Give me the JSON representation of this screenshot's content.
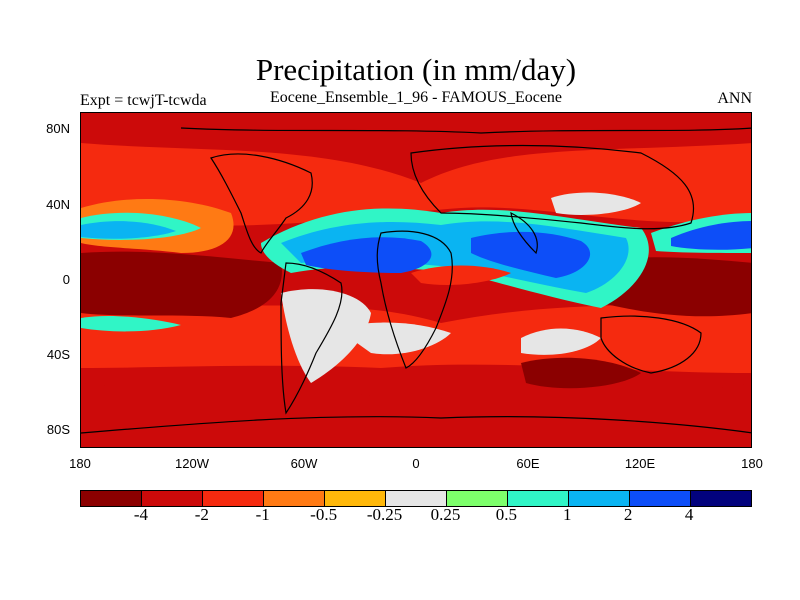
{
  "header": {
    "title": "Precipitation (in mm/day)",
    "subtitle": "Eocene_Ensemble_1_96 - FAMOUS_Eocene",
    "left_label": "Expt = tcwjT-tcwda",
    "right_label": "ANN"
  },
  "map": {
    "projection": "cylindrical-equidistant",
    "lon_range": [
      -180,
      180
    ],
    "lat_range": [
      -90,
      90
    ],
    "y_axis_labels": [
      "80N",
      "40N",
      "0",
      "40S",
      "80S"
    ],
    "x_axis_labels": [
      "180",
      "120W",
      "60W",
      "0",
      "60E",
      "120E",
      "180"
    ],
    "background_level": "-2 to -1",
    "regions": [
      {
        "name": "north-pacific-positive-band",
        "level": "1 to 2",
        "color": "#0a98f0"
      },
      {
        "name": "tropical-atlantic-africa-positive",
        "level": "2 to 4",
        "color": "#0d4ef8"
      },
      {
        "name": "indian-ocean-positive",
        "level": "2 to 4",
        "color": "#0d4ef8"
      },
      {
        "name": "west-pacific-positive",
        "level": "2 to 4",
        "color": "#0d4ef8"
      },
      {
        "name": "equatorial-pacific-negative",
        "level": "< -4",
        "color": "#8b0000"
      },
      {
        "name": "south-indian-negative",
        "level": "< -4",
        "color": "#8b0000"
      },
      {
        "name": "southern-ocean-negative",
        "level": "-4 to -2",
        "color": "#cc0a0a"
      },
      {
        "name": "south-america-neutral",
        "level": "-0.25 to 0.25",
        "color": "#e6e6e6"
      }
    ]
  },
  "colorbar": {
    "colors": [
      "#8b0000",
      "#cc0a0a",
      "#f52a0f",
      "#ff7a14",
      "#ffb80a",
      "#e6e6e6",
      "#7dff6b",
      "#30f5c6",
      "#0ab4f2",
      "#0d4ef8",
      "#02027d"
    ],
    "labels": [
      "-4",
      "-2",
      "-1",
      "-0.5",
      "-0.25",
      "0.25",
      "0.5",
      "1",
      "2",
      "4"
    ]
  }
}
